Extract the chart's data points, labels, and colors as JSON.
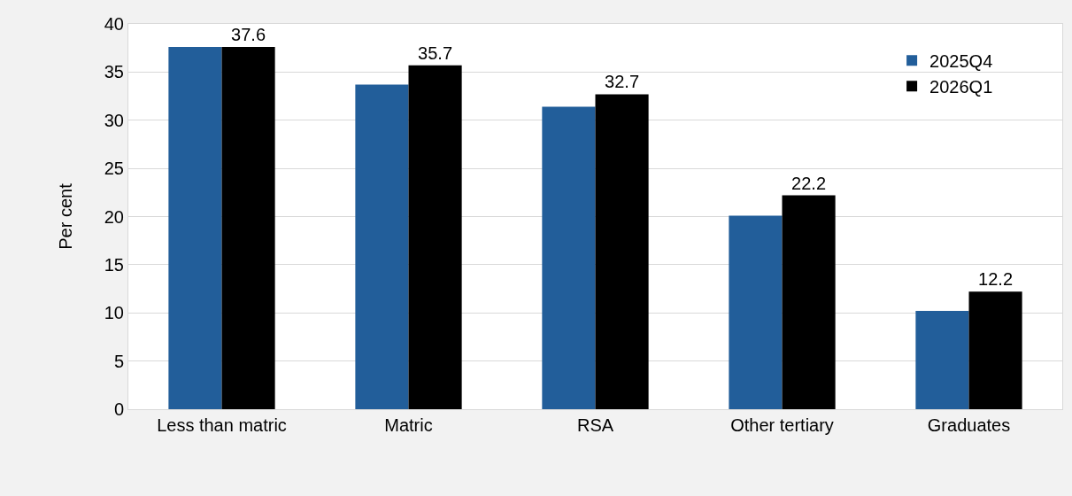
{
  "chart_data": {
    "type": "bar",
    "ylabel": "Per cent",
    "categories": [
      "Less than matric",
      "Matric",
      "RSA",
      "Other tertiary",
      "Graduates"
    ],
    "series": [
      {
        "name": "2025Q4",
        "color": "#225e9a",
        "values": [
          37.6,
          33.7,
          31.4,
          20.1,
          10.2
        ]
      },
      {
        "name": "2026Q1",
        "color": "#000000",
        "values": [
          37.6,
          35.7,
          32.7,
          22.2,
          12.2
        ],
        "value_labels": [
          "37.6",
          "35.7",
          "32.7",
          "22.2",
          "12.2"
        ]
      }
    ],
    "ylim": [
      0,
      40
    ],
    "yticks": [
      0,
      5,
      10,
      15,
      20,
      25,
      30,
      35,
      40
    ],
    "grid": "y",
    "legend": "top right"
  }
}
